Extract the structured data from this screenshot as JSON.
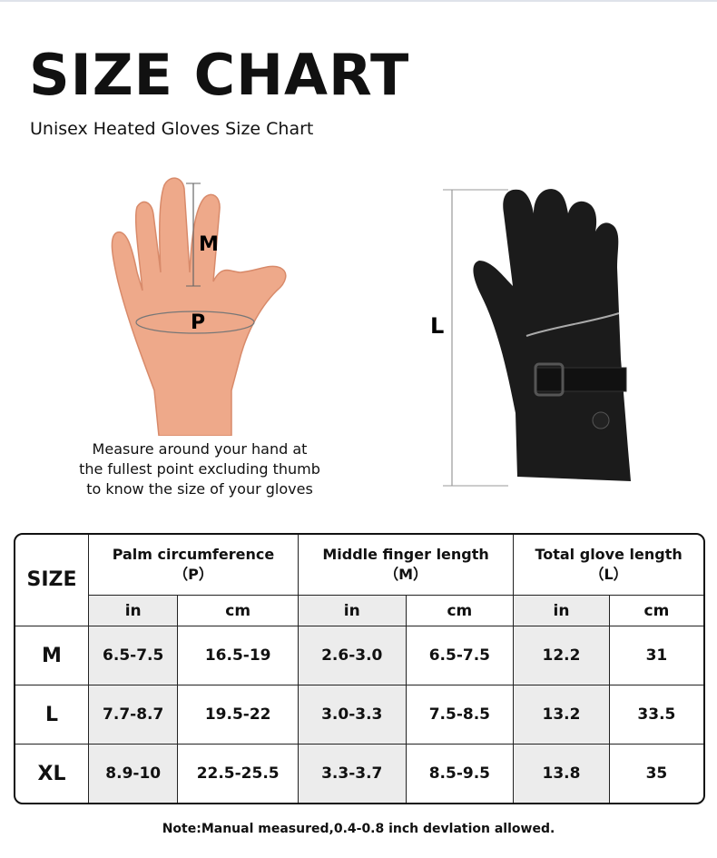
{
  "header": {
    "title": "SIZE CHART",
    "subtitle": "Unisex Heated Gloves Size Chart"
  },
  "hand_diagram": {
    "label_m": "M",
    "label_p": "P",
    "caption_lines": [
      "Measure around your hand at",
      "the fullest point excluding thumb",
      "to know the size of your gloves"
    ]
  },
  "glove_diagram": {
    "label_l": "L"
  },
  "table": {
    "size_header": "SIZE",
    "groups": [
      {
        "name": "Palm circumference",
        "code": "（P）"
      },
      {
        "name": "Middle finger length",
        "code": "（M）"
      },
      {
        "name": "Total glove length",
        "code": "（L）"
      }
    ],
    "units": [
      "in",
      "cm",
      "in",
      "cm",
      "in",
      "cm"
    ],
    "rows": [
      {
        "size": "M",
        "values": [
          "6.5-7.5",
          "16.5-19",
          "2.6-3.0",
          "6.5-7.5",
          "12.2",
          "31"
        ]
      },
      {
        "size": "L",
        "values": [
          "7.7-8.7",
          "19.5-22",
          "3.0-3.3",
          "7.5-8.5",
          "13.2",
          "33.5"
        ]
      },
      {
        "size": "XL",
        "values": [
          "8.9-10",
          "22.5-25.5",
          "3.3-3.7",
          "8.5-9.5",
          "13.8",
          "35"
        ]
      }
    ]
  },
  "note": "Note:Manual measured,0.4-0.8 inch devlation allowed."
}
